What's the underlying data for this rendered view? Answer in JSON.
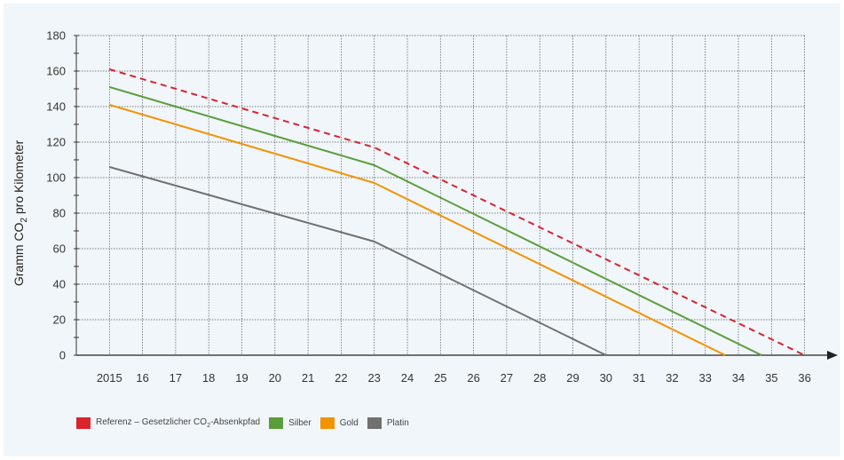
{
  "chart_data": {
    "type": "line",
    "ylabel_parts": [
      "Gramm CO",
      "2",
      " pro Kilometer"
    ],
    "x_tick_labels": [
      "2015",
      "16",
      "17",
      "18",
      "19",
      "20",
      "21",
      "22",
      "23",
      "24",
      "25",
      "26",
      "27",
      "28",
      "29",
      "30",
      "31",
      "32",
      "33",
      "34",
      "35",
      "36"
    ],
    "y_ticks": [
      0,
      20,
      40,
      60,
      80,
      100,
      120,
      140,
      160,
      180
    ],
    "xlim": [
      2014,
      2036.7
    ],
    "ylim": [
      0,
      180
    ],
    "grid": true,
    "legend_position": "bottom-left",
    "series": [
      {
        "name": "Referenz – Gesetzlicher CO2-Absenkpfad",
        "name_parts": [
          "Referenz – Gesetzlicher CO",
          "2",
          "-Absenkpfad"
        ],
        "color": "#d9232d",
        "dashed": true,
        "points": [
          [
            2015,
            161
          ],
          [
            2023,
            117
          ],
          [
            2036,
            0
          ]
        ]
      },
      {
        "name": "Silber",
        "color": "#5a9e3c",
        "dashed": false,
        "points": [
          [
            2015,
            151
          ],
          [
            2023,
            107
          ],
          [
            2034.7,
            0
          ]
        ]
      },
      {
        "name": "Gold",
        "color": "#f39200",
        "dashed": false,
        "points": [
          [
            2015,
            141
          ],
          [
            2023,
            97
          ],
          [
            2033.6,
            0
          ]
        ]
      },
      {
        "name": "Platin",
        "color": "#707070",
        "dashed": false,
        "points": [
          [
            2015,
            106
          ],
          [
            2023,
            64
          ],
          [
            2030,
            0
          ]
        ]
      }
    ]
  }
}
